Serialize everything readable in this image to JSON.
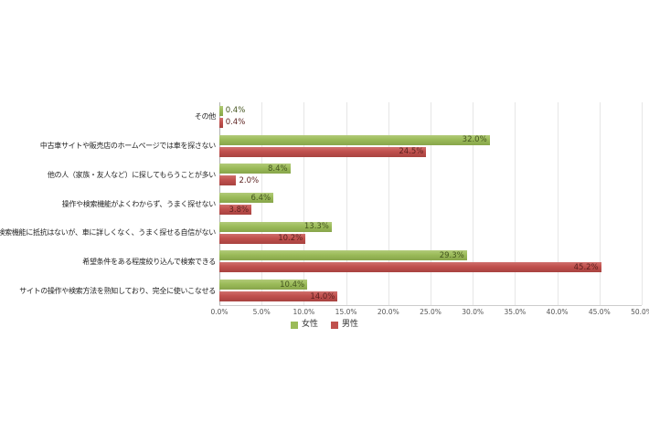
{
  "chart_data": {
    "type": "bar",
    "orientation": "horizontal",
    "title": "",
    "xlabel": "",
    "ylabel": "",
    "xlim": [
      0,
      50
    ],
    "x_tick_step": 5,
    "x_tick_labels": [
      "0.0%",
      "5.0%",
      "10.0%",
      "15.0%",
      "20.0%",
      "25.0%",
      "30.0%",
      "35.0%",
      "40.0%",
      "45.0%",
      "50.0%"
    ],
    "grid": true,
    "legend_position": "bottom",
    "categories": [
      "その他",
      "中古車サイトや販売店のホームページでは車を探さない",
      "他の人（家族・友人など）に探してもらうことが多い",
      "操作や検索機能がよくわからず、うまく探せない",
      "操作や検索機能に抵抗はないが、車に詳しくなく、うまく探せる自信がない",
      "希望条件をある程度絞り込んで検索できる",
      "サイトの操作や検索方法を熟知しており、完全に使いこなせる"
    ],
    "series": [
      {
        "key": "female",
        "name": "女性",
        "color": "#9bbb59",
        "color_light": "#b2ca79",
        "color_dark": "#87a54a",
        "label_color": "#44551f",
        "values": [
          0.4,
          32.0,
          8.4,
          6.4,
          13.3,
          29.3,
          10.4
        ],
        "value_labels": [
          "0.4%",
          "32.0%",
          "8.4%",
          "6.4%",
          "13.3%",
          "29.3%",
          "10.4%"
        ]
      },
      {
        "key": "male",
        "name": "男性",
        "color": "#c0504d",
        "color_light": "#cf6f6c",
        "color_dark": "#a84340",
        "label_color": "#5c211f",
        "values": [
          0.4,
          24.5,
          2.0,
          3.8,
          10.2,
          45.2,
          14.0
        ],
        "value_labels": [
          "0.4%",
          "24.5%",
          "2.0%",
          "3.8%",
          "10.2%",
          "45.2%",
          "14.0%"
        ]
      }
    ]
  }
}
